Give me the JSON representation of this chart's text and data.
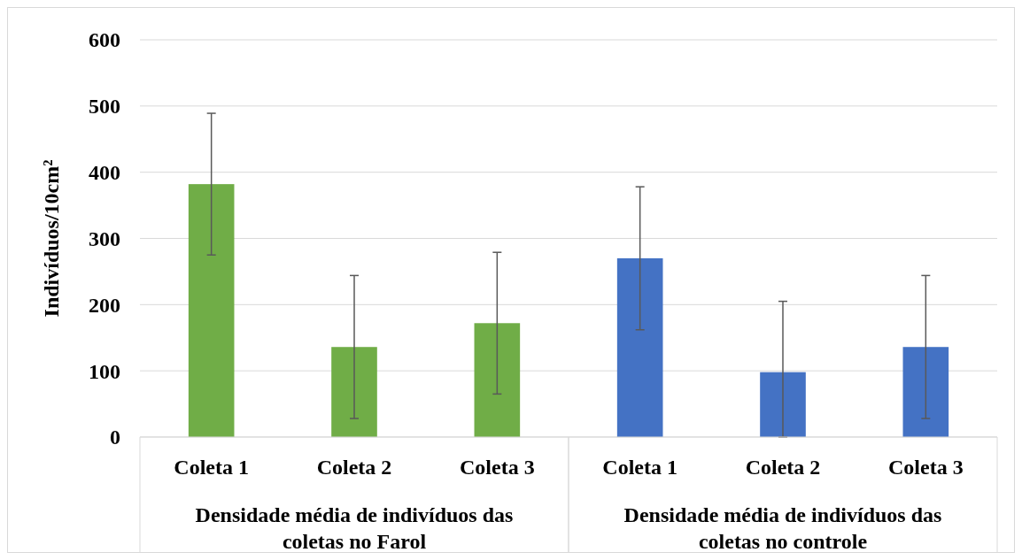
{
  "chart_data": {
    "type": "bar",
    "ylabel": "Indivíduos/10cm²",
    "categories": [
      "Coleta 1",
      "Coleta 2",
      "Coleta 3",
      "Coleta 1",
      "Coleta 2",
      "Coleta 3"
    ],
    "series": [
      {
        "color": "#70ad47",
        "values": [
          382,
          136,
          172,
          null,
          null,
          null
        ],
        "errors": [
          107,
          108,
          107,
          null,
          null,
          null
        ]
      },
      {
        "color": "#4472c4",
        "values": [
          null,
          null,
          null,
          270,
          98,
          136
        ],
        "errors": [
          null,
          null,
          null,
          108,
          [
            0,
            205
          ],
          108
        ]
      }
    ],
    "annotations": [
      "Densidade média de indivíduos das coletas no Farol",
      "Densidade média de indivíduos das coletas no controle"
    ],
    "ylim": [
      0,
      600
    ],
    "yticks": [
      0,
      100,
      200,
      300,
      400,
      500,
      600
    ],
    "grid": "y",
    "legend": false
  }
}
